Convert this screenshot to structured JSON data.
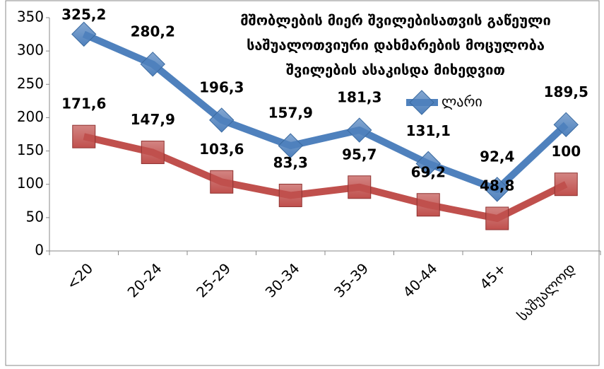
{
  "chart_data": {
    "type": "line",
    "title": [
      "მშობლების მიერ შვილებისათვის გაწეული",
      "საშუალოთვიური დახმარების მოცულობა",
      "შვილების ასაკისდა მიხედვით"
    ],
    "categories": [
      "<20",
      "20-24",
      "25-29",
      "30-34",
      "35-39",
      "40-44",
      "45+",
      "საშუალოდ"
    ],
    "series": [
      {
        "name": "ლარი",
        "color": "#4f81bd",
        "marker": "diamond",
        "values": [
          325.2,
          280.2,
          196.3,
          157.9,
          181.3,
          131.1,
          92.4,
          189.5
        ],
        "value_labels": [
          "325,2",
          "280,2",
          "196,3",
          "157,9",
          "181,3",
          "131,1",
          "92,4",
          "189,5"
        ]
      },
      {
        "color": "#c0504d",
        "marker": "square",
        "values": [
          171.6,
          147.9,
          103.6,
          83.3,
          95.7,
          69.2,
          48.8,
          100
        ],
        "value_labels": [
          "171,6",
          "147,9",
          "103,6",
          "83,3",
          "95,7",
          "69,2",
          "48,8",
          "100"
        ]
      }
    ],
    "ylim": [
      0,
      350
    ],
    "yticks": [
      0,
      50,
      100,
      150,
      200,
      250,
      300,
      350
    ],
    "grid": false
  }
}
